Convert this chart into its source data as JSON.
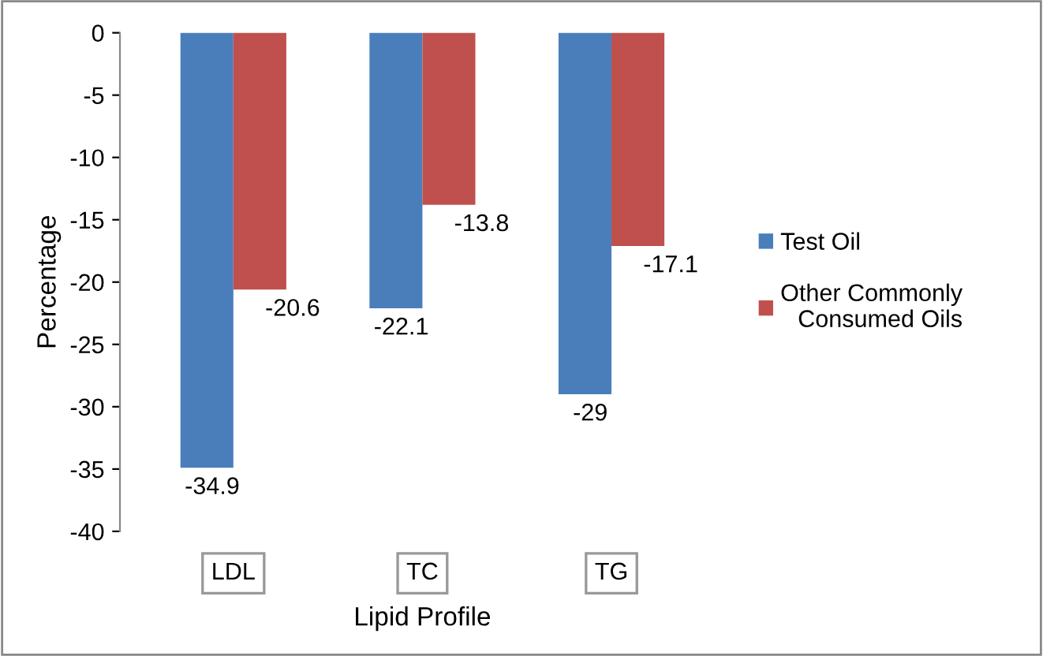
{
  "chart_data": {
    "type": "bar",
    "xlabel": "Lipid Profile",
    "ylabel": "Percentage",
    "categories": [
      "LDL",
      "TC",
      "TG"
    ],
    "series": [
      {
        "name": "Test Oil",
        "color": "#4a7ebb",
        "values": [
          -34.9,
          -22.1,
          -29
        ]
      },
      {
        "name": "Other Commonly Consumed Oils",
        "color": "#c0504d",
        "values": [
          -20.6,
          -13.8,
          -17.1
        ]
      }
    ],
    "ylim": [
      -40,
      0
    ],
    "yticks": [
      0,
      -5,
      -10,
      -15,
      -20,
      -25,
      -30,
      -35,
      -40
    ],
    "data_labels": true,
    "grid": false,
    "legend": "right"
  }
}
